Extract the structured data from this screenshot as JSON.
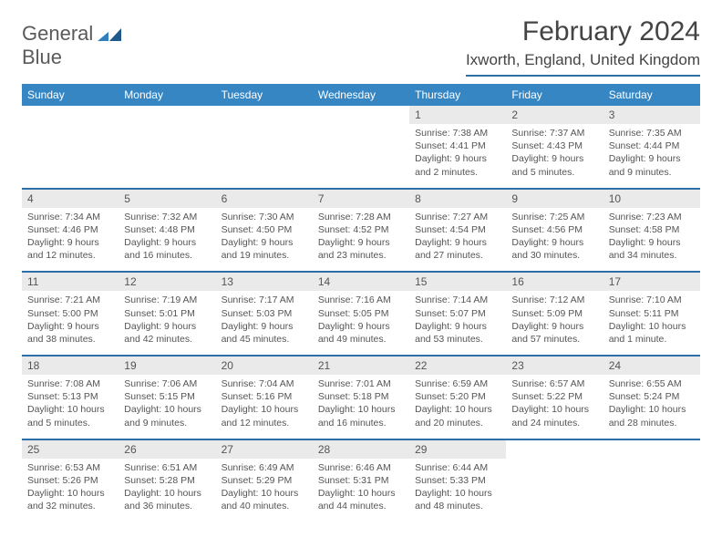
{
  "logo": {
    "line1": "General",
    "line2": "Blue"
  },
  "title": "February 2024",
  "location": "Ixworth, England, United Kingdom",
  "colors": {
    "accent": "#3686c4",
    "rule": "#2d6fa8",
    "daynum_bg": "#eaeaea",
    "text": "#555555"
  },
  "weekdays": [
    "Sunday",
    "Monday",
    "Tuesday",
    "Wednesday",
    "Thursday",
    "Friday",
    "Saturday"
  ],
  "weeks": [
    [
      {
        "n": "",
        "empty": true
      },
      {
        "n": "",
        "empty": true
      },
      {
        "n": "",
        "empty": true
      },
      {
        "n": "",
        "empty": true
      },
      {
        "n": "1",
        "sunrise": "Sunrise: 7:38 AM",
        "sunset": "Sunset: 4:41 PM",
        "day": "Daylight: 9 hours and 2 minutes."
      },
      {
        "n": "2",
        "sunrise": "Sunrise: 7:37 AM",
        "sunset": "Sunset: 4:43 PM",
        "day": "Daylight: 9 hours and 5 minutes."
      },
      {
        "n": "3",
        "sunrise": "Sunrise: 7:35 AM",
        "sunset": "Sunset: 4:44 PM",
        "day": "Daylight: 9 hours and 9 minutes."
      }
    ],
    [
      {
        "n": "4",
        "sunrise": "Sunrise: 7:34 AM",
        "sunset": "Sunset: 4:46 PM",
        "day": "Daylight: 9 hours and 12 minutes."
      },
      {
        "n": "5",
        "sunrise": "Sunrise: 7:32 AM",
        "sunset": "Sunset: 4:48 PM",
        "day": "Daylight: 9 hours and 16 minutes."
      },
      {
        "n": "6",
        "sunrise": "Sunrise: 7:30 AM",
        "sunset": "Sunset: 4:50 PM",
        "day": "Daylight: 9 hours and 19 minutes."
      },
      {
        "n": "7",
        "sunrise": "Sunrise: 7:28 AM",
        "sunset": "Sunset: 4:52 PM",
        "day": "Daylight: 9 hours and 23 minutes."
      },
      {
        "n": "8",
        "sunrise": "Sunrise: 7:27 AM",
        "sunset": "Sunset: 4:54 PM",
        "day": "Daylight: 9 hours and 27 minutes."
      },
      {
        "n": "9",
        "sunrise": "Sunrise: 7:25 AM",
        "sunset": "Sunset: 4:56 PM",
        "day": "Daylight: 9 hours and 30 minutes."
      },
      {
        "n": "10",
        "sunrise": "Sunrise: 7:23 AM",
        "sunset": "Sunset: 4:58 PM",
        "day": "Daylight: 9 hours and 34 minutes."
      }
    ],
    [
      {
        "n": "11",
        "sunrise": "Sunrise: 7:21 AM",
        "sunset": "Sunset: 5:00 PM",
        "day": "Daylight: 9 hours and 38 minutes."
      },
      {
        "n": "12",
        "sunrise": "Sunrise: 7:19 AM",
        "sunset": "Sunset: 5:01 PM",
        "day": "Daylight: 9 hours and 42 minutes."
      },
      {
        "n": "13",
        "sunrise": "Sunrise: 7:17 AM",
        "sunset": "Sunset: 5:03 PM",
        "day": "Daylight: 9 hours and 45 minutes."
      },
      {
        "n": "14",
        "sunrise": "Sunrise: 7:16 AM",
        "sunset": "Sunset: 5:05 PM",
        "day": "Daylight: 9 hours and 49 minutes."
      },
      {
        "n": "15",
        "sunrise": "Sunrise: 7:14 AM",
        "sunset": "Sunset: 5:07 PM",
        "day": "Daylight: 9 hours and 53 minutes."
      },
      {
        "n": "16",
        "sunrise": "Sunrise: 7:12 AM",
        "sunset": "Sunset: 5:09 PM",
        "day": "Daylight: 9 hours and 57 minutes."
      },
      {
        "n": "17",
        "sunrise": "Sunrise: 7:10 AM",
        "sunset": "Sunset: 5:11 PM",
        "day": "Daylight: 10 hours and 1 minute."
      }
    ],
    [
      {
        "n": "18",
        "sunrise": "Sunrise: 7:08 AM",
        "sunset": "Sunset: 5:13 PM",
        "day": "Daylight: 10 hours and 5 minutes."
      },
      {
        "n": "19",
        "sunrise": "Sunrise: 7:06 AM",
        "sunset": "Sunset: 5:15 PM",
        "day": "Daylight: 10 hours and 9 minutes."
      },
      {
        "n": "20",
        "sunrise": "Sunrise: 7:04 AM",
        "sunset": "Sunset: 5:16 PM",
        "day": "Daylight: 10 hours and 12 minutes."
      },
      {
        "n": "21",
        "sunrise": "Sunrise: 7:01 AM",
        "sunset": "Sunset: 5:18 PM",
        "day": "Daylight: 10 hours and 16 minutes."
      },
      {
        "n": "22",
        "sunrise": "Sunrise: 6:59 AM",
        "sunset": "Sunset: 5:20 PM",
        "day": "Daylight: 10 hours and 20 minutes."
      },
      {
        "n": "23",
        "sunrise": "Sunrise: 6:57 AM",
        "sunset": "Sunset: 5:22 PM",
        "day": "Daylight: 10 hours and 24 minutes."
      },
      {
        "n": "24",
        "sunrise": "Sunrise: 6:55 AM",
        "sunset": "Sunset: 5:24 PM",
        "day": "Daylight: 10 hours and 28 minutes."
      }
    ],
    [
      {
        "n": "25",
        "sunrise": "Sunrise: 6:53 AM",
        "sunset": "Sunset: 5:26 PM",
        "day": "Daylight: 10 hours and 32 minutes."
      },
      {
        "n": "26",
        "sunrise": "Sunrise: 6:51 AM",
        "sunset": "Sunset: 5:28 PM",
        "day": "Daylight: 10 hours and 36 minutes."
      },
      {
        "n": "27",
        "sunrise": "Sunrise: 6:49 AM",
        "sunset": "Sunset: 5:29 PM",
        "day": "Daylight: 10 hours and 40 minutes."
      },
      {
        "n": "28",
        "sunrise": "Sunrise: 6:46 AM",
        "sunset": "Sunset: 5:31 PM",
        "day": "Daylight: 10 hours and 44 minutes."
      },
      {
        "n": "29",
        "sunrise": "Sunrise: 6:44 AM",
        "sunset": "Sunset: 5:33 PM",
        "day": "Daylight: 10 hours and 48 minutes."
      },
      {
        "n": "",
        "empty": true
      },
      {
        "n": "",
        "empty": true
      }
    ]
  ]
}
